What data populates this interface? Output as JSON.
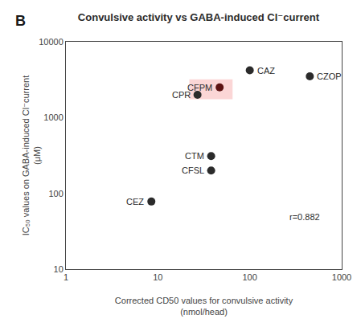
{
  "chart_data": {
    "type": "scatter",
    "title": "Convulsive activity vs GABA-induced Cl⁻current",
    "xlabel": "Corrected CD50 values for convulsive activity\n(nmol/head)",
    "ylabel": "IC₅₀ values on GABA-induced Cl⁻current\n(μM)",
    "log": true,
    "grid": false,
    "xlim": [
      1,
      1000
    ],
    "ylim": [
      10,
      10000
    ],
    "xticks": [
      1,
      10,
      100,
      1000
    ],
    "yticks": [
      10,
      100,
      1000,
      10000
    ],
    "x": [
      100,
      450,
      47,
      27,
      38,
      38,
      8.5
    ],
    "values": [
      4200,
      3500,
      2500,
      2000,
      310,
      200,
      78
    ],
    "colors": [
      "#2b2b2b",
      "#2b2b2b",
      "#5c1212",
      "#2b2b2b",
      "#2b2b2b",
      "#2b2b2b",
      "#2b2b2b"
    ],
    "point_labels": [
      "CAZ",
      "CZOP",
      "CFPM",
      "CPR",
      "CTM",
      "CFSL",
      "CEZ"
    ],
    "highlight_box": {
      "x": [
        22,
        65
      ],
      "y": [
        1750,
        3200
      ],
      "color": "#f9c0c0"
    },
    "annotations": [
      {
        "text": "r=0.882",
        "x": 600,
        "y": 40
      },
      {
        "text": "B"
      }
    ]
  }
}
